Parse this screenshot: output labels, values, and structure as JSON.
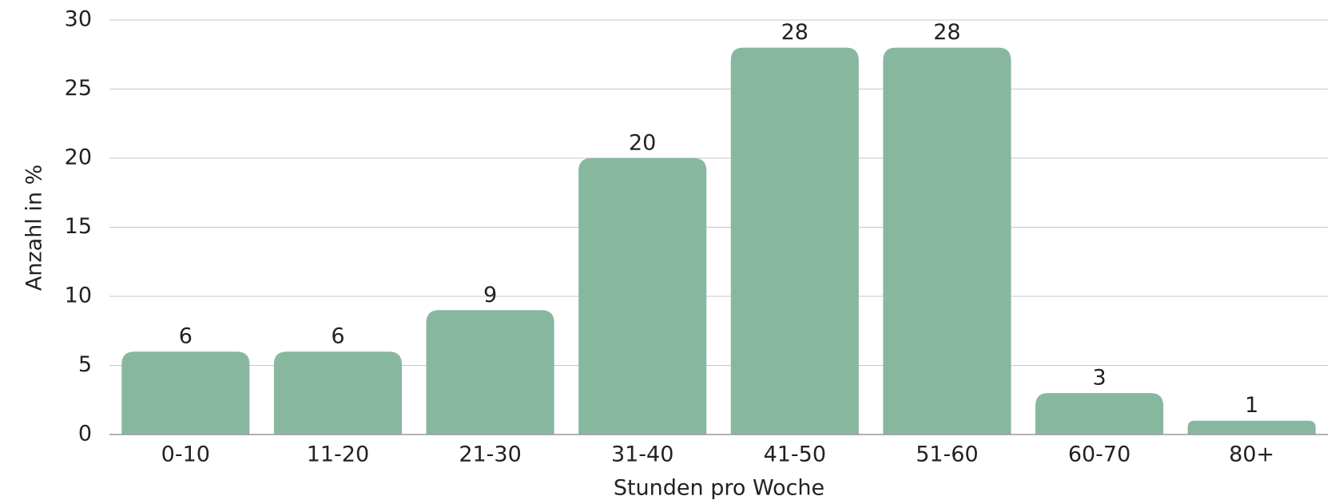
{
  "chart_data": {
    "type": "bar",
    "categories": [
      "0-10",
      "11-20",
      "21-30",
      "31-40",
      "41-50",
      "51-60",
      "60-70",
      "80+"
    ],
    "values": [
      6,
      6,
      9,
      20,
      28,
      28,
      3,
      1
    ],
    "color": "#88b7a0",
    "xlabel": "Stunden pro Woche",
    "ylabel": "Anzahl in %",
    "ylim": [
      0,
      30
    ],
    "yticks": [
      0,
      5,
      10,
      15,
      20,
      25,
      30
    ],
    "grid": true
  }
}
